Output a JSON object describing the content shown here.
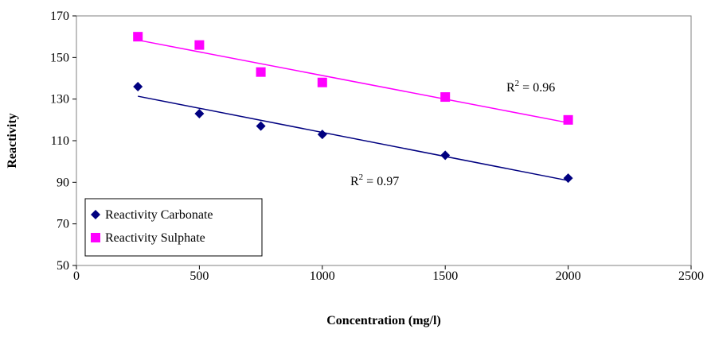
{
  "chart_data": {
    "type": "scatter",
    "x_label": "Concentration (mg/l)",
    "y_label": "Reactivity",
    "xlim": [
      0,
      2500
    ],
    "xticks": [
      0,
      500,
      1000,
      1500,
      2000,
      2500
    ],
    "ylim": [
      50,
      170
    ],
    "yticks": [
      50,
      70,
      90,
      110,
      130,
      150,
      170
    ],
    "trendline": true,
    "legend": "bottom-left",
    "series": [
      {
        "name": "Reactivity Carbonate",
        "color": "#000080",
        "marker": "diamond",
        "x": [
          250,
          500,
          750,
          1000,
          1500,
          2000
        ],
        "values": [
          136,
          123,
          117,
          113,
          103,
          92
        ],
        "trend_label": {
          "base": "R",
          "sup": "2",
          "text": " = 0.97"
        }
      },
      {
        "name": "Reactivity Sulphate",
        "color": "#ff00ff",
        "marker": "square",
        "x": [
          250,
          500,
          750,
          1000,
          1500,
          2000
        ],
        "values": [
          160,
          156,
          143,
          138,
          131,
          120
        ],
        "trend_label": {
          "base": "R",
          "sup": "2",
          "text": " = 0.96"
        }
      }
    ]
  }
}
